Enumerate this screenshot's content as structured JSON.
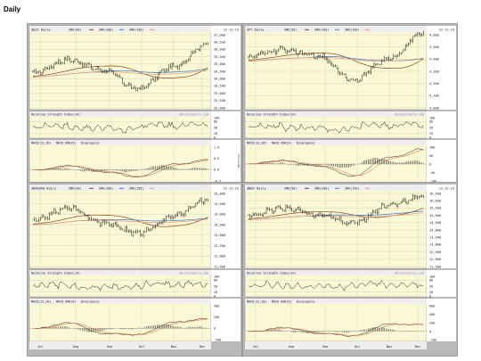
{
  "page": {
    "title": "Daily"
  },
  "colors": {
    "chart_bg": "#fbf8d5",
    "frame": "#b9b9b9",
    "price": "#111111",
    "sma50": "#8b4513",
    "sma100": "#3a7fd1",
    "sma150": "#e79a72",
    "grid": "#d9d6b8",
    "text": "#222222"
  },
  "panels": [
    {
      "symbol": "$DJI Daily",
      "date": "12-12-23",
      "legend": [
        "SMA(50)",
        "SMA(100)",
        "SMA(150)"
      ],
      "price_ticks": [
        "37,000",
        "36,500",
        "36,000",
        "35,500",
        "35,000",
        "34,500",
        "34,000",
        "33,500",
        "33,000",
        "32,500",
        "32,000"
      ],
      "price_min": 32000,
      "price_max": 37000,
      "rsi_label": "Relative Strength Index(14)",
      "watermark": "@StockCharts.com",
      "rsi_ticks": [
        "100",
        "80",
        "50",
        "20",
        "0"
      ],
      "macd_label": "MACD(12,26)",
      "macd_ema_label": "MACD EMA(9)",
      "macd_div_label": "Divergence",
      "macd_ticks": [
        "1.0",
        "0.5",
        "0.0",
        "-0.5"
      ],
      "macd_unit": "Thousands",
      "months": [
        "Jul",
        "Aug",
        "Sep",
        "Oct",
        "Nov",
        "Dec"
      ]
    },
    {
      "symbol": "SPY Daily",
      "date": "12-12-23",
      "legend": [
        "SMA(50)",
        "SMA(100)",
        "SMA(150)"
      ],
      "price_ticks": [
        "4,600",
        "4,500",
        "4,400",
        "4,300",
        "4,200",
        "4,100",
        "4,000"
      ],
      "price_min": 4000,
      "price_max": 4600,
      "rsi_label": "Relative Strength Index(14)",
      "watermark": "@StockCharts.com",
      "rsi_ticks": [
        "100",
        "80",
        "50",
        "20",
        "0"
      ],
      "macd_label": "MACD(12,26)",
      "macd_ema_label": "MACD EMA(9)",
      "macd_div_label": "Divergence",
      "macd_ticks": [
        "100",
        "50",
        "0",
        "-50",
        "-100"
      ],
      "macd_unit": "",
      "months": [
        "Jul",
        "Aug",
        "Sep",
        "Oct",
        "Nov",
        "Dec"
      ]
    },
    {
      "symbol": "$NASDAQ Daily",
      "date": "12-12-23",
      "legend": [
        "SMA(50)",
        "SMA(100)",
        "SMA(150)"
      ],
      "price_ticks": [
        "15,000",
        "14,500",
        "14,000",
        "13,500",
        "13,000",
        "12,500",
        "12,000",
        "11,500"
      ],
      "price_min": 11500,
      "price_max": 15000,
      "rsi_label": "Relative Strength Index(14)",
      "watermark": "@StockCharts.com",
      "rsi_ticks": [
        "100",
        "80",
        "50",
        "20",
        "0"
      ],
      "macd_label": "MACD(12,26)",
      "macd_ema_label": "MACD EMA(9)",
      "macd_div_label": "Divergence",
      "macd_ticks": [
        "400",
        "200",
        "0",
        "-200"
      ],
      "macd_unit": "",
      "months": [
        "Jul",
        "Aug",
        "Sep",
        "Oct",
        "Nov",
        "Dec"
      ]
    },
    {
      "symbol": "$NDX Daily",
      "date": "12-12-23",
      "legend": [
        "SMA(50)",
        "SMA(100)",
        "SMA(150)"
      ],
      "price_ticks": [
        "16,500",
        "16,000",
        "15,500",
        "15,000",
        "14,500",
        "14,000",
        "13,500",
        "13,000",
        "12,500",
        "12,000",
        "11,500"
      ],
      "price_min": 11500,
      "price_max": 16500,
      "rsi_label": "Relative Strength Index(14)",
      "watermark": "@StockCharts.com",
      "rsi_ticks": [
        "100",
        "80",
        "50",
        "20",
        "0"
      ],
      "macd_label": "MACD(12,26)",
      "macd_ema_label": "MACD EMA(9)",
      "macd_div_label": "Divergence",
      "macd_ticks": [
        "600",
        "400",
        "200",
        "0",
        "-200"
      ],
      "macd_unit": "",
      "months": [
        "Jul",
        "Aug",
        "Sep",
        "Oct",
        "Nov",
        "Dec"
      ]
    }
  ],
  "chart_data": [
    {
      "type": "line",
      "title": "$DJI Daily",
      "x": [
        "Jul",
        "Aug",
        "Sep",
        "Oct",
        "Nov",
        "Dec"
      ],
      "series": [
        {
          "values": [
            34400,
            35300,
            34600,
            33300,
            34800,
            36400
          ]
        }
      ],
      "ylim": [
        32000,
        37000
      ]
    },
    {
      "type": "line",
      "title": "SPY Daily",
      "x": [
        "Jul",
        "Aug",
        "Sep",
        "Oct",
        "Nov",
        "Dec"
      ],
      "series": [
        {
          "values": [
            4420,
            4480,
            4420,
            4230,
            4400,
            4620
          ]
        }
      ],
      "ylim": [
        4000,
        4600
      ]
    },
    {
      "type": "line",
      "title": "$NASDAQ Daily",
      "x": [
        "Jul",
        "Aug",
        "Sep",
        "Oct",
        "Nov",
        "Dec"
      ],
      "series": [
        {
          "values": [
            13700,
            14300,
            13600,
            13100,
            13900,
            14700
          ]
        }
      ],
      "ylim": [
        11500,
        15000
      ]
    },
    {
      "type": "line",
      "title": "$NDX Daily",
      "x": [
        "Jul",
        "Aug",
        "Sep",
        "Oct",
        "Nov",
        "Dec"
      ],
      "series": [
        {
          "values": [
            15000,
            15500,
            15000,
            14500,
            15700,
            16300
          ]
        }
      ],
      "ylim": [
        11500,
        16500
      ]
    }
  ]
}
